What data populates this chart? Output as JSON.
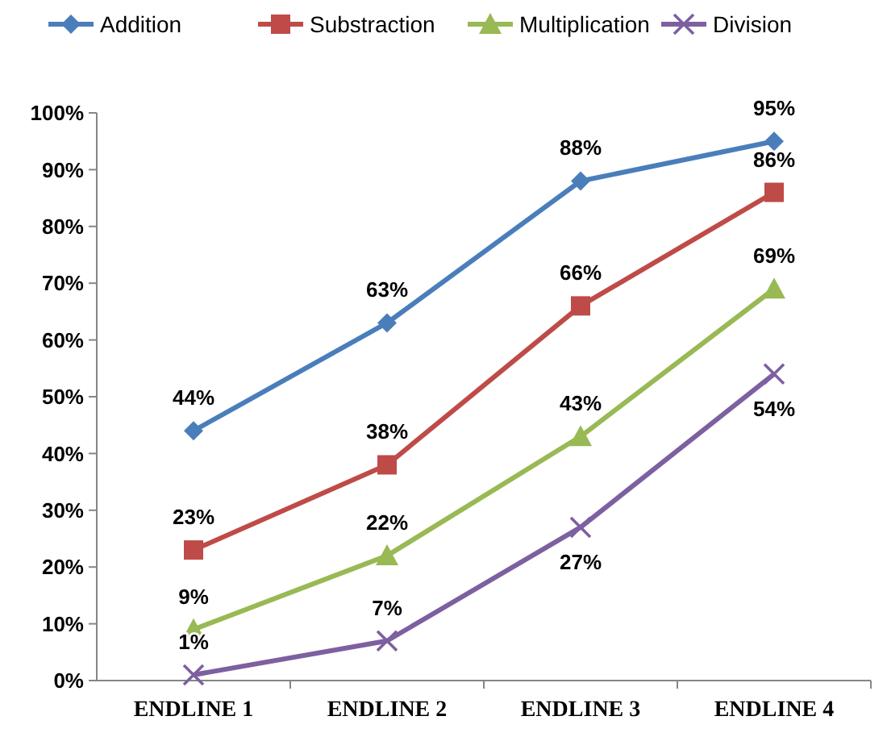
{
  "chart_data": {
    "type": "line",
    "categories": [
      "ENDLINE 1",
      "ENDLINE 2",
      "ENDLINE 3",
      "ENDLINE 4"
    ],
    "ylim": [
      0,
      100
    ],
    "yticks": [
      {
        "value": 0,
        "label": "0%"
      },
      {
        "value": 10,
        "label": "10%"
      },
      {
        "value": 20,
        "label": "20%"
      },
      {
        "value": 30,
        "label": "30%"
      },
      {
        "value": 40,
        "label": "40%"
      },
      {
        "value": 50,
        "label": "50%"
      },
      {
        "value": 60,
        "label": "60%"
      },
      {
        "value": 70,
        "label": "70%"
      },
      {
        "value": 80,
        "label": "80%"
      },
      {
        "value": 90,
        "label": "90%"
      },
      {
        "value": 100,
        "label": "100%"
      }
    ],
    "legend": "top",
    "grid": false,
    "series": [
      {
        "name": "Addition",
        "color": "#4a7ebb",
        "marker": "diamond",
        "values": [
          44,
          63,
          88,
          95
        ],
        "value_labels": [
          "44%",
          "63%",
          "88%",
          "95%"
        ]
      },
      {
        "name": "Substraction",
        "color": "#be4b48",
        "marker": "square",
        "values": [
          23,
          38,
          66,
          86
        ],
        "value_labels": [
          "23%",
          "38%",
          "66%",
          "86%"
        ]
      },
      {
        "name": "Multiplication",
        "color": "#98b954",
        "marker": "triangle",
        "values": [
          9,
          22,
          43,
          69
        ],
        "value_labels": [
          "9%",
          "22%",
          "43%",
          "69%"
        ]
      },
      {
        "name": "Division",
        "color": "#7d60a0",
        "marker": "cross",
        "values": [
          1,
          7,
          27,
          54
        ],
        "value_labels": [
          "1%",
          "7%",
          "27%",
          "54%"
        ]
      }
    ]
  }
}
